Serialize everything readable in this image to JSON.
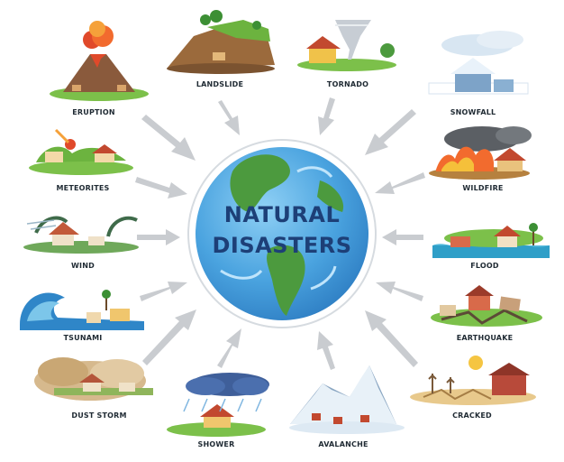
{
  "title_line1": "NATURAL",
  "title_line2": "DISASTERS",
  "items": {
    "eruption": "ERUPTION",
    "landslide": "LANDSLIDE",
    "tornado": "TORNADO",
    "snowfall": "SNOWFALL",
    "meteorites": "METEORITES",
    "wildfire": "WILDFIRE",
    "wind": "WIND",
    "flood": "FLOOD",
    "tsunami": "TSUNAMI",
    "earthquake": "EARTHQUAKE",
    "dust_storm": "DUST STORM",
    "cracked": "CRACKED",
    "shower": "SHOWER",
    "avalanche": "AVALANCHE"
  },
  "colors": {
    "ocean": "#4aa3df",
    "land": "#4c9a3e",
    "title": "#1d3f77",
    "arrow": "#c9ccd0"
  }
}
